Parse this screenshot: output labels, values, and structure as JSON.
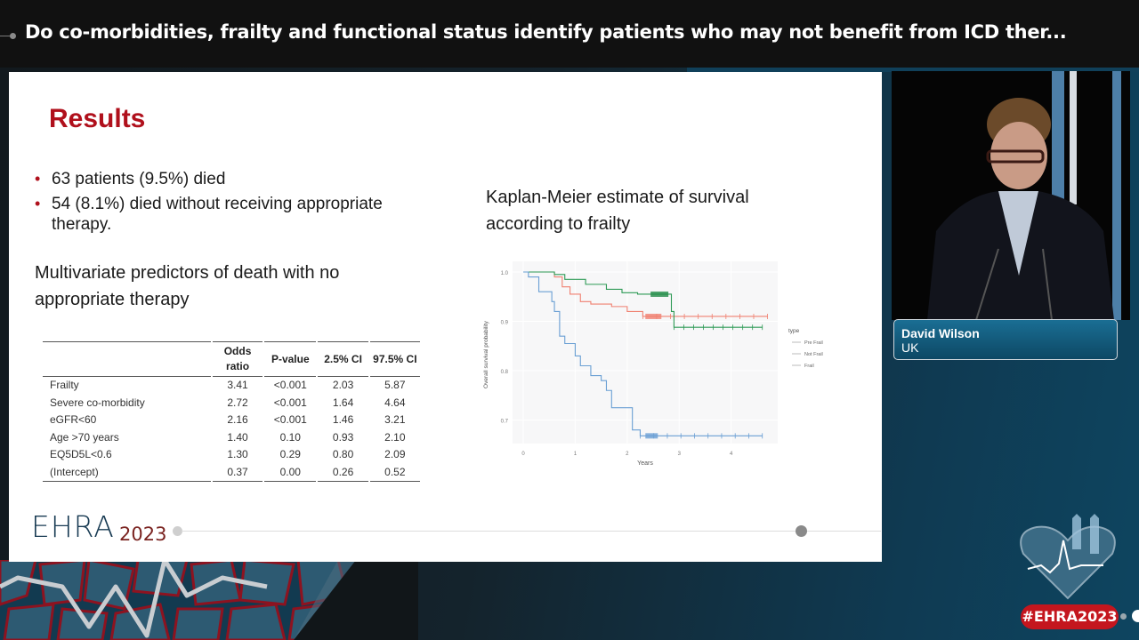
{
  "header": {
    "title": "Do co-morbidities, frailty and functional status identify patients who may not benefit from ICD ther..."
  },
  "slide": {
    "title": "Results",
    "bullets": [
      "63 patients (9.5%) died",
      "54 (8.1%) died without receiving appropriate therapy."
    ],
    "table_heading": "Multivariate predictors of death with no appropriate therapy",
    "table": {
      "columns": [
        "",
        "Odds ratio",
        "P-value",
        "2.5% CI",
        "97.5% CI"
      ],
      "rows": [
        [
          "Frailty",
          "3.41",
          "<0.001",
          "2.03",
          "5.87"
        ],
        [
          "Severe co-morbidity",
          "2.72",
          "<0.001",
          "1.64",
          "4.64"
        ],
        [
          "eGFR<60",
          "2.16",
          "<0.001",
          "1.46",
          "3.21"
        ],
        [
          "Age >70 years",
          "1.40",
          "0.10",
          "0.93",
          "2.10"
        ],
        [
          "EQ5D5L<0.6",
          "1.30",
          "0.29",
          "0.80",
          "2.09"
        ],
        [
          "(Intercept)",
          "0.37",
          "0.00",
          "0.26",
          "0.52"
        ]
      ]
    },
    "chart_heading": "Kaplan-Meier estimate of survival according to frailty",
    "footer": {
      "logo_text": "EHRA",
      "logo_year": "2023"
    }
  },
  "chart_data": {
    "type": "line",
    "title": "Kaplan-Meier estimate of survival according to frailty",
    "xlabel": "Years",
    "ylabel": "Overall survival probability",
    "x_ticks": [
      "0",
      "1",
      "2",
      "3",
      "4"
    ],
    "y_ticks": [
      "0.7",
      "0.8",
      "0.9",
      "1.0"
    ],
    "xlim": [
      0,
      4.7
    ],
    "ylim": [
      0.665,
      1.0
    ],
    "legend_title": "type",
    "legend_position": "right",
    "series": [
      {
        "name": "Pre Frail",
        "color": "#f08070",
        "points": [
          [
            0,
            1.0
          ],
          [
            0.6,
            0.99
          ],
          [
            0.75,
            0.97
          ],
          [
            0.9,
            0.955
          ],
          [
            1.1,
            0.94
          ],
          [
            1.3,
            0.935
          ],
          [
            1.7,
            0.93
          ],
          [
            2.0,
            0.92
          ],
          [
            2.3,
            0.91
          ],
          [
            4.7,
            0.91
          ]
        ]
      },
      {
        "name": "Not Frail",
        "color": "#2e9a55",
        "points": [
          [
            0,
            1.0
          ],
          [
            0.6,
            0.995
          ],
          [
            0.8,
            0.985
          ],
          [
            1.2,
            0.975
          ],
          [
            1.6,
            0.965
          ],
          [
            1.9,
            0.958
          ],
          [
            2.2,
            0.955
          ],
          [
            2.85,
            0.955
          ],
          [
            2.85,
            0.92
          ],
          [
            2.9,
            0.888
          ],
          [
            4.6,
            0.888
          ]
        ]
      },
      {
        "name": "Frail",
        "color": "#6a9fd4",
        "points": [
          [
            0,
            1.0
          ],
          [
            0.1,
            0.99
          ],
          [
            0.3,
            0.96
          ],
          [
            0.55,
            0.94
          ],
          [
            0.6,
            0.92
          ],
          [
            0.7,
            0.87
          ],
          [
            0.8,
            0.855
          ],
          [
            1.0,
            0.83
          ],
          [
            1.1,
            0.81
          ],
          [
            1.3,
            0.79
          ],
          [
            1.5,
            0.78
          ],
          [
            1.6,
            0.76
          ],
          [
            1.7,
            0.725
          ],
          [
            2.0,
            0.725
          ],
          [
            2.1,
            0.68
          ],
          [
            2.25,
            0.668
          ],
          [
            4.6,
            0.668
          ]
        ]
      }
    ],
    "grid": true
  },
  "speaker": {
    "name": "David Wilson",
    "country": "UK"
  },
  "event": {
    "hashtag": "#EHRA2023"
  }
}
